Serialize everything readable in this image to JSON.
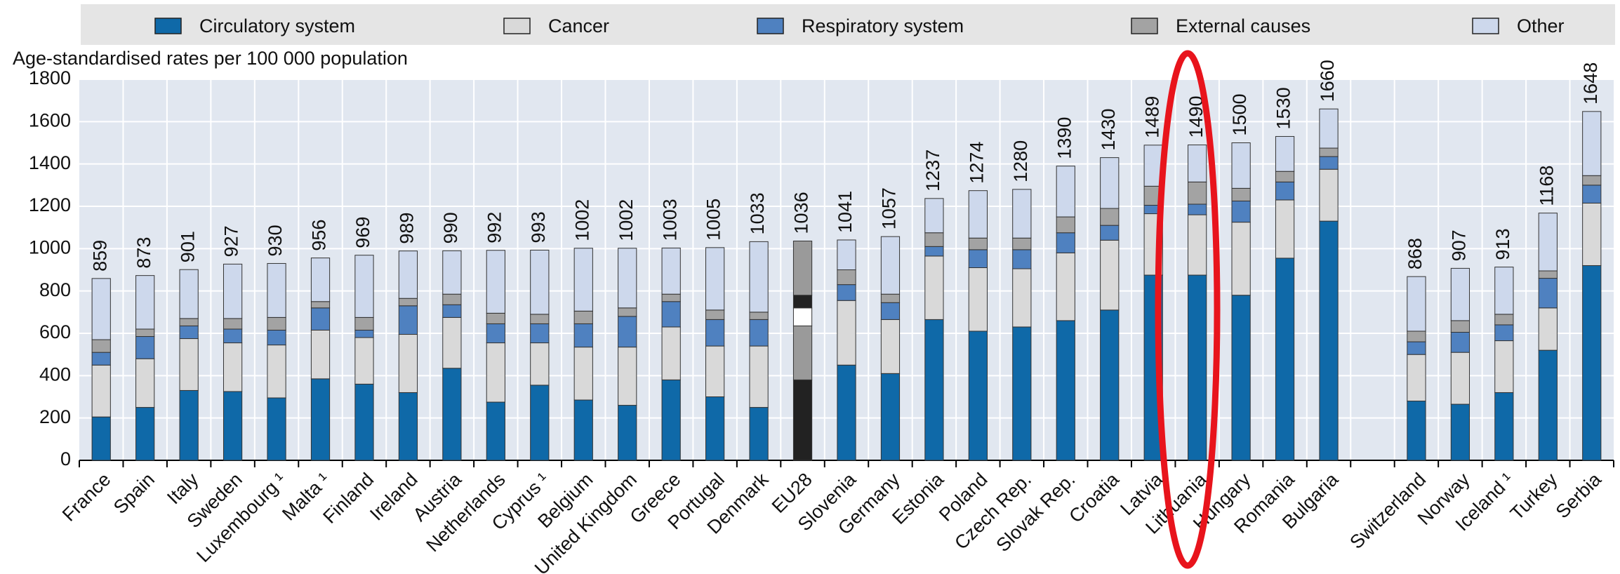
{
  "chart_data": {
    "type": "stacked_bar",
    "ylabel": "Age-standardised rates per 100 000 population",
    "categories": [
      "France",
      "Spain",
      "Italy",
      "Sweden",
      "Luxembourg ¹",
      "Malta ¹",
      "Finland",
      "Ireland",
      "Austria",
      "Netherlands",
      "Cyprus ¹",
      "Belgium",
      "United Kingdom",
      "Greece",
      "Portugal",
      "Denmark",
      "EU28",
      "Slovenia",
      "Germany",
      "Estonia",
      "Poland",
      "Czech Rep.",
      "Slovak Rep.",
      "Croatia",
      "Latvia",
      "Lithuania",
      "Hungary",
      "Romania",
      "Bulgaria",
      null,
      "Switzerland",
      "Norway",
      "Iceland ¹",
      "Turkey",
      "Serbia"
    ],
    "totals": [
      859,
      873,
      901,
      927,
      930,
      956,
      969,
      989,
      990,
      992,
      993,
      1002,
      1002,
      1003,
      1005,
      1033,
      1036,
      1041,
      1057,
      1237,
      1274,
      1280,
      1390,
      1430,
      1489,
      1490,
      1500,
      1530,
      1660,
      null,
      868,
      907,
      913,
      1168,
      1648
    ],
    "series": [
      {
        "name": "Circulatory system",
        "color": "#0f69a8",
        "values": [
          205,
          250,
          330,
          325,
          295,
          385,
          360,
          320,
          435,
          275,
          355,
          285,
          260,
          380,
          300,
          250,
          380,
          450,
          410,
          665,
          610,
          630,
          660,
          710,
          875,
          875,
          780,
          955,
          1130,
          null,
          280,
          265,
          320,
          520,
          920
        ]
      },
      {
        "name": "Cancer",
        "color": "#d9d9d9",
        "values": [
          245,
          230,
          245,
          230,
          250,
          230,
          220,
          275,
          240,
          280,
          200,
          250,
          275,
          250,
          240,
          290,
          255,
          305,
          255,
          300,
          300,
          275,
          320,
          330,
          290,
          285,
          345,
          275,
          245,
          null,
          220,
          245,
          245,
          200,
          295
        ]
      },
      {
        "name": "Respiratory system",
        "color": "#4f81c0",
        "values": [
          60,
          105,
          60,
          65,
          70,
          105,
          35,
          135,
          60,
          90,
          90,
          110,
          145,
          120,
          125,
          125,
          85,
          75,
          80,
          45,
          85,
          90,
          95,
          70,
          40,
          50,
          100,
          85,
          60,
          null,
          60,
          95,
          75,
          140,
          85
        ]
      },
      {
        "name": "External causes",
        "color": "#a3a3a3",
        "values": [
          60,
          35,
          35,
          50,
          60,
          30,
          60,
          35,
          50,
          50,
          45,
          60,
          40,
          35,
          45,
          35,
          60,
          70,
          40,
          65,
          55,
          55,
          75,
          80,
          90,
          105,
          60,
          50,
          40,
          null,
          50,
          55,
          50,
          35,
          45
        ]
      },
      {
        "name": "Other",
        "color": "#cdd8ec",
        "values": [
          289,
          253,
          231,
          257,
          255,
          206,
          294,
          224,
          205,
          297,
          303,
          297,
          282,
          218,
          295,
          333,
          256,
          141,
          272,
          162,
          224,
          230,
          240,
          240,
          194,
          175,
          215,
          165,
          185,
          null,
          258,
          247,
          223,
          273,
          303
        ]
      }
    ],
    "highlight_index": 16,
    "highlight_colors": [
      "#222222",
      "#9a9a9a",
      "#ffffff",
      "#222222",
      "#9a9a9a"
    ],
    "ylim": [
      0,
      1800
    ],
    "yticks": [
      0,
      200,
      400,
      600,
      800,
      1000,
      1200,
      1400,
      1600,
      1800
    ],
    "grid": true
  }
}
